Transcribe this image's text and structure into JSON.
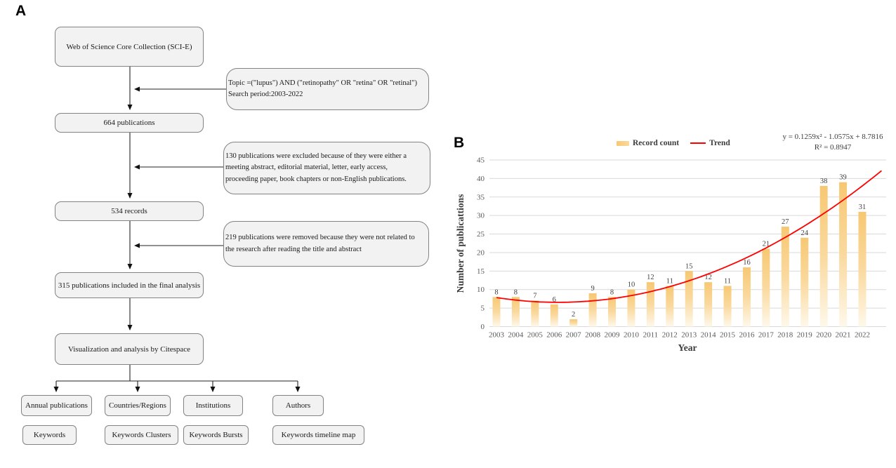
{
  "panel_a": {
    "label": "A",
    "main_boxes": [
      {
        "label": "Web of Science Core Collection (SCI-E)"
      },
      {
        "label": "664 publications"
      },
      {
        "label": "534 records"
      },
      {
        "label": "315 publications included in the final analysis"
      },
      {
        "label": "Visualization and analysis by Citespace"
      }
    ],
    "side_boxes": [
      {
        "label": "Topic =(\"lupus\") AND (\"retinopathy\" OR \"retina\" OR \"retinal\")\nSearch period:2003-2022"
      },
      {
        "label": "130 publications were excluded because of they were either a\nmeeting abstract, editorial material, letter, early access,\nproceeding paper, book chapters or non-English publications."
      },
      {
        "label": "219 publications were removed because they were not related to\nthe research after reading the title and abstract"
      }
    ],
    "result_boxes_row1": [
      {
        "label": "Annual publications"
      },
      {
        "label": "Countries/Regions"
      },
      {
        "label": "Institutions"
      },
      {
        "label": "Authors"
      }
    ],
    "result_boxes_row2": [
      {
        "label": "Keywords"
      },
      {
        "label": "Keywords Clusters"
      },
      {
        "label": "Keywords Bursts"
      },
      {
        "label": "Keywords timeline map"
      }
    ]
  },
  "panel_b": {
    "label": "B",
    "legend": [
      {
        "label": "Record count",
        "type": "bar",
        "color": "#F7C873"
      },
      {
        "label": "Trend",
        "type": "line",
        "color": "#FF0000"
      }
    ],
    "equation_line1": "y = 0.1259x² - 1.0575x + 8.7816",
    "equation_line2": "R² = 0.8947"
  },
  "chart_data": {
    "type": "bar",
    "title": "",
    "categories": [
      "2003",
      "2004",
      "2005",
      "2006",
      "2007",
      "2008",
      "2009",
      "2010",
      "2011",
      "2012",
      "2013",
      "2014",
      "2015",
      "2016",
      "2017",
      "2018",
      "2019",
      "2020",
      "2021",
      "2022"
    ],
    "values": [
      8,
      8,
      7,
      6,
      2,
      9,
      8,
      10,
      12,
      11,
      15,
      12,
      11,
      16,
      21,
      27,
      24,
      38,
      39,
      31
    ],
    "xlabel": "Year",
    "ylabel": "Number of publicattions",
    "ylim": [
      0,
      45
    ],
    "ytick_step": 5,
    "grid": true,
    "legend_position": "top",
    "bar_gradient": [
      "#F7C873",
      "#FAD99E",
      "#FEF8EA"
    ],
    "grid_color": "#D9D9D9",
    "tick_color": "#595959",
    "value_label_color": "#404040",
    "trend": {
      "shape": "quadratic",
      "a": 0.1259,
      "b": -1.0575,
      "c": 8.7816,
      "color": "#FF0000",
      "r2": 0.8947
    }
  }
}
